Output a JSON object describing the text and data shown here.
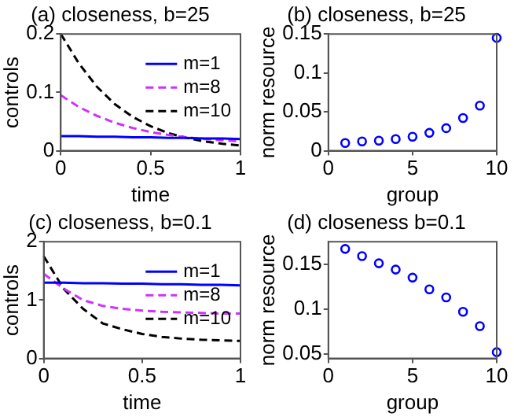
{
  "chart_data": [
    {
      "type": "line",
      "title": "(a) closeness, b=25",
      "xlabel": "time",
      "ylabel": "controls",
      "x": [
        0,
        0.1,
        0.2,
        0.3,
        0.4,
        0.5,
        0.6,
        0.7,
        0.8,
        0.9,
        1
      ],
      "xlim": [
        0,
        1
      ],
      "xticks": [
        0,
        0.5,
        1
      ],
      "ylim": [
        0,
        0.2
      ],
      "yticks": [
        0,
        0.1,
        0.2
      ],
      "grid": false,
      "legend": "top right",
      "marker": "none",
      "series": [
        {
          "name": "m=1",
          "color": "#0000ff",
          "line_style": "solid",
          "values": [
            0.025,
            0.025,
            0.024,
            0.024,
            0.023,
            0.023,
            0.022,
            0.022,
            0.021,
            0.021,
            0.02
          ]
        },
        {
          "name": "m=8",
          "color": "#cc33ff",
          "line_style": "dashed",
          "values": [
            0.095,
            0.075,
            0.06,
            0.048,
            0.039,
            0.032,
            0.027,
            0.023,
            0.02,
            0.018,
            0.016
          ]
        },
        {
          "name": "m=10",
          "color": "#000000",
          "line_style": "dashed",
          "values": [
            0.2,
            0.15,
            0.11,
            0.08,
            0.058,
            0.042,
            0.03,
            0.022,
            0.016,
            0.012,
            0.009
          ]
        }
      ]
    },
    {
      "type": "scatter",
      "title": "(b) closeness, b=25",
      "xlabel": "group",
      "ylabel": "norm resource",
      "x": [
        1,
        2,
        3,
        4,
        5,
        6,
        7,
        8,
        9,
        10
      ],
      "xlim": [
        0,
        10
      ],
      "xticks": [
        0,
        5,
        10
      ],
      "ylim": [
        0,
        0.15
      ],
      "yticks": [
        0,
        0.05,
        0.1,
        0.15
      ],
      "grid": false,
      "legend": false,
      "marker": "circle",
      "series": [
        {
          "color": "#0000ff",
          "values": [
            0.01,
            0.012,
            0.013,
            0.015,
            0.018,
            0.023,
            0.029,
            0.042,
            0.058,
            0.145
          ]
        }
      ]
    },
    {
      "type": "line",
      "title": "(c) closeness, b=0.1",
      "xlabel": "time",
      "ylabel": "controls",
      "x": [
        0,
        0.1,
        0.2,
        0.3,
        0.4,
        0.5,
        0.6,
        0.7,
        0.8,
        0.9,
        1
      ],
      "xlim": [
        0,
        1
      ],
      "xticks": [
        0,
        0.5,
        1
      ],
      "ylim": [
        0,
        2
      ],
      "yticks": [
        0,
        1,
        2
      ],
      "grid": false,
      "legend": "top right",
      "marker": "none",
      "series": [
        {
          "name": "m=1",
          "color": "#0000ff",
          "line_style": "solid",
          "values": [
            1.3,
            1.3,
            1.29,
            1.29,
            1.28,
            1.28,
            1.27,
            1.27,
            1.26,
            1.26,
            1.25
          ]
        },
        {
          "name": "m=8",
          "color": "#cc33ff",
          "line_style": "dashed",
          "values": [
            1.45,
            1.2,
            1.0,
            0.9,
            0.85,
            0.82,
            0.8,
            0.79,
            0.78,
            0.77,
            0.77
          ]
        },
        {
          "name": "m=10",
          "color": "#000000",
          "line_style": "dashed",
          "values": [
            1.75,
            1.2,
            0.85,
            0.6,
            0.5,
            0.42,
            0.37,
            0.34,
            0.32,
            0.31,
            0.3
          ]
        }
      ]
    },
    {
      "type": "scatter",
      "title": "(d) closeness b=0.1",
      "xlabel": "group",
      "ylabel": "norm resource",
      "x": [
        1,
        2,
        3,
        4,
        5,
        6,
        7,
        8,
        9,
        10
      ],
      "xlim": [
        0,
        10
      ],
      "xticks": [
        0,
        5,
        10
      ],
      "ylim": [
        0.045,
        0.175
      ],
      "yticks": [
        0.05,
        0.1,
        0.15
      ],
      "grid": false,
      "legend": false,
      "marker": "circle",
      "series": [
        {
          "color": "#0000ff",
          "values": [
            0.167,
            0.159,
            0.151,
            0.144,
            0.135,
            0.122,
            0.113,
            0.097,
            0.081,
            0.052
          ]
        }
      ]
    }
  ]
}
